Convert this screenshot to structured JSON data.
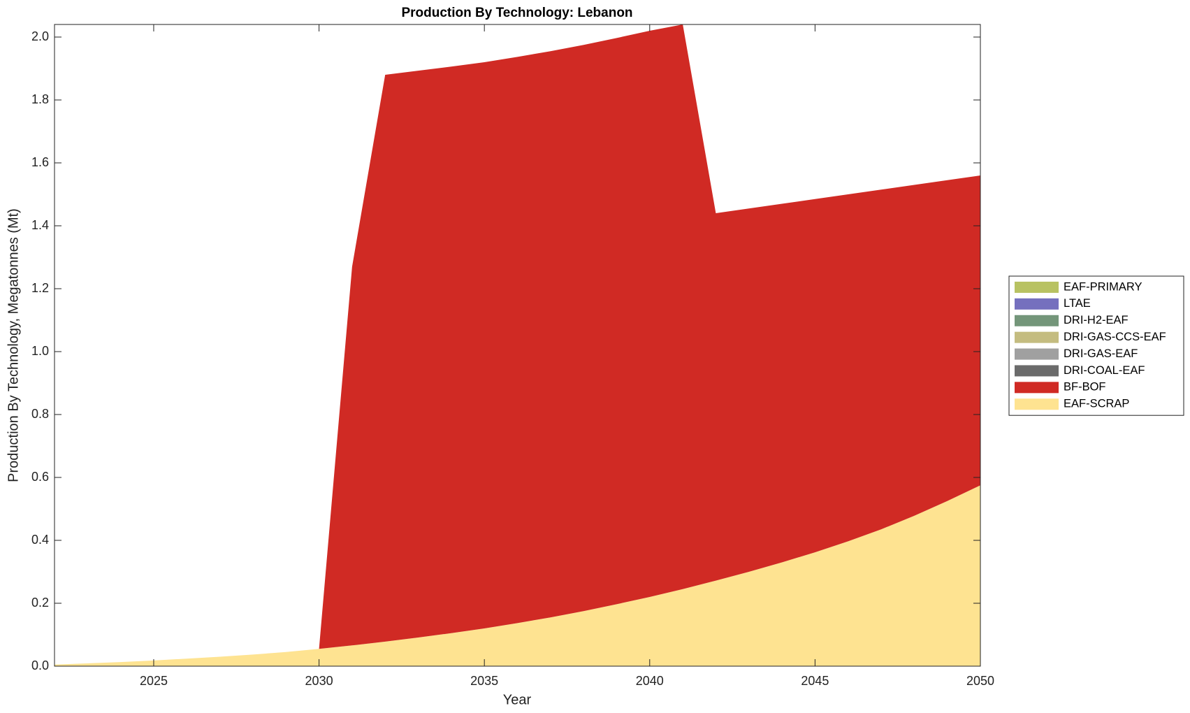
{
  "chart_data": {
    "type": "stacked_area",
    "title": "Production By Technology: Lebanon",
    "x_label": "Year",
    "y_label": "Production By Technology, Megatonnes (Mt)",
    "x": [
      2022,
      2023,
      2024,
      2025,
      2026,
      2027,
      2028,
      2029,
      2030,
      2031,
      2032,
      2033,
      2034,
      2035,
      2036,
      2037,
      2038,
      2039,
      2040,
      2041,
      2042,
      2043,
      2044,
      2045,
      2046,
      2047,
      2048,
      2049,
      2050
    ],
    "xlim": [
      2022,
      2050
    ],
    "xticks": [
      2025,
      2030,
      2035,
      2040,
      2045,
      2050
    ],
    "ylim": [
      0,
      2.04
    ],
    "yticks": [
      {
        "value": 0,
        "label": "0.0"
      },
      0.2,
      0.4,
      0.6,
      0.8,
      {
        "value": 1,
        "label": "1.0"
      },
      1.2,
      1.4,
      1.6,
      1.8,
      {
        "value": 2,
        "label": "2.0"
      }
    ],
    "legend_position": "right",
    "series": [
      {
        "name": "EAF-PRIMARY",
        "color": "#b8c262",
        "values": [
          0,
          0,
          0,
          0,
          0,
          0,
          0,
          0,
          0,
          0,
          0,
          0,
          0,
          0,
          0,
          0,
          0,
          0,
          0,
          0,
          0,
          0,
          0,
          0,
          0,
          0,
          0,
          0,
          0
        ]
      },
      {
        "name": "LTAE",
        "color": "#7570be",
        "values": [
          0,
          0,
          0,
          0,
          0,
          0,
          0,
          0,
          0,
          0,
          0,
          0,
          0,
          0,
          0,
          0,
          0,
          0,
          0,
          0,
          0,
          0,
          0,
          0,
          0,
          0,
          0,
          0,
          0
        ]
      },
      {
        "name": "DRI-H2-EAF",
        "color": "#74967a",
        "values": [
          0,
          0,
          0,
          0,
          0,
          0,
          0,
          0,
          0,
          0,
          0,
          0,
          0,
          0,
          0,
          0,
          0,
          0,
          0,
          0,
          0,
          0,
          0,
          0,
          0,
          0,
          0,
          0,
          0
        ]
      },
      {
        "name": "DRI-GAS-CCS-EAF",
        "color": "#c4bc80",
        "values": [
          0,
          0,
          0,
          0,
          0,
          0,
          0,
          0,
          0,
          0,
          0,
          0,
          0,
          0,
          0,
          0,
          0,
          0,
          0,
          0,
          0,
          0,
          0,
          0,
          0,
          0,
          0,
          0,
          0
        ]
      },
      {
        "name": "DRI-GAS-EAF",
        "color": "#a0a0a0",
        "values": [
          0,
          0,
          0,
          0,
          0,
          0,
          0,
          0,
          0,
          0,
          0,
          0,
          0,
          0,
          0,
          0,
          0,
          0,
          0,
          0,
          0,
          0,
          0,
          0,
          0,
          0,
          0,
          0,
          0
        ]
      },
      {
        "name": "DRI-COAL-EAF",
        "color": "#6b6b6b",
        "values": [
          0,
          0,
          0,
          0,
          0,
          0,
          0,
          0,
          0,
          0,
          0,
          0,
          0,
          0,
          0,
          0,
          0,
          0,
          0,
          0,
          0,
          0,
          0,
          0,
          0,
          0,
          0,
          0,
          0
        ]
      },
      {
        "name": "BF-BOF",
        "color": "#d02a24",
        "values": [
          0,
          0,
          0,
          0,
          0,
          0,
          0,
          0,
          0,
          1.204,
          1.802,
          1.802,
          1.801,
          1.8,
          1.8,
          1.8,
          1.8,
          1.8,
          1.8,
          1.795,
          1.168,
          1.155,
          1.14,
          1.123,
          1.103,
          1.08,
          1.052,
          1.02,
          0.985
        ]
      },
      {
        "name": "EAF-SCRAP",
        "color": "#fee391",
        "values": [
          0.005,
          0.009,
          0.013,
          0.018,
          0.024,
          0.03,
          0.037,
          0.045,
          0.055,
          0.066,
          0.078,
          0.091,
          0.105,
          0.12,
          0.137,
          0.155,
          0.175,
          0.197,
          0.22,
          0.245,
          0.272,
          0.3,
          0.33,
          0.362,
          0.397,
          0.435,
          0.478,
          0.525,
          0.575
        ]
      }
    ]
  }
}
